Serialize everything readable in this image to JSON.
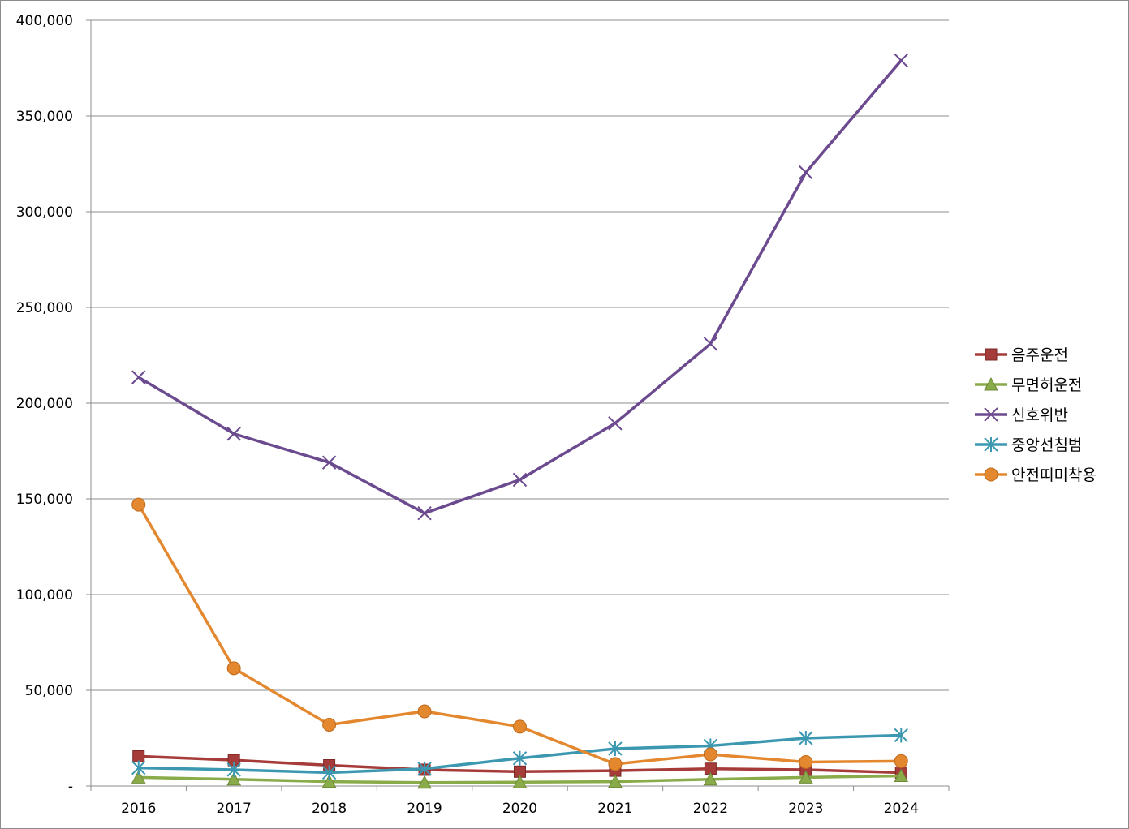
{
  "chart_data": {
    "type": "line",
    "title": "",
    "xlabel": "",
    "ylabel": "",
    "categories": [
      "2016",
      "2017",
      "2018",
      "2019",
      "2020",
      "2021",
      "2022",
      "2023",
      "2024"
    ],
    "ylim": [
      0,
      400000
    ],
    "yticks": [
      0,
      50000,
      100000,
      150000,
      200000,
      250000,
      300000,
      350000,
      400000
    ],
    "ytick_labels": [
      "-",
      "50,000",
      "100,000",
      "150,000",
      "200,000",
      "250,000",
      "300,000",
      "350,000",
      "400,000"
    ],
    "grid": "horizontal",
    "legend_position": "right",
    "series": [
      {
        "name": "음주운전",
        "color": "#a63c3a",
        "marker": "square",
        "values": [
          15500,
          13500,
          10800,
          8500,
          7500,
          8000,
          9000,
          8500,
          7000
        ]
      },
      {
        "name": "무면허운전",
        "color": "#8aab4a",
        "marker": "triangle",
        "values": [
          4500,
          3500,
          2300,
          1800,
          2000,
          2300,
          3500,
          4500,
          5300
        ]
      },
      {
        "name": "신호위반",
        "color": "#6c4a8f",
        "marker": "x",
        "values": [
          213500,
          184000,
          169000,
          142500,
          160000,
          189500,
          231000,
          320500,
          379000
        ]
      },
      {
        "name": "중앙선침범",
        "color": "#3c98b0",
        "marker": "star",
        "values": [
          9500,
          8500,
          7000,
          9000,
          14500,
          19500,
          21000,
          25000,
          26500
        ]
      },
      {
        "name": "안전띠미착용",
        "color": "#e3882f",
        "marker": "circle",
        "values": [
          147000,
          61500,
          32000,
          39000,
          31000,
          11500,
          16500,
          12500,
          13000
        ]
      }
    ]
  }
}
